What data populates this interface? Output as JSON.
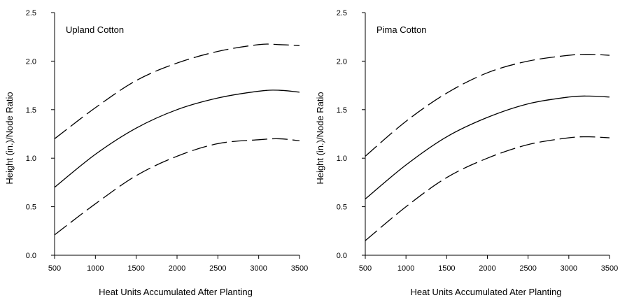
{
  "chart_data": [
    {
      "type": "line",
      "title": "Upland Cotton",
      "xlabel": "Heat Units Accumulated After Planting",
      "ylabel": "Height (in.)/Node Ratio",
      "xlim": [
        500,
        3500
      ],
      "ylim": [
        0.0,
        2.5
      ],
      "xticks": [
        "500",
        "1000",
        "1500",
        "2000",
        "2500",
        "3000",
        "3500"
      ],
      "yticks": [
        "0.0",
        "0.5",
        "1.0",
        "1.5",
        "2.0",
        "2.5"
      ],
      "grid": false,
      "series": [
        {
          "style": "dashed",
          "x": [
            500,
            1000,
            1500,
            2000,
            2500,
            3000,
            3250,
            3500
          ],
          "y": [
            1.2,
            1.52,
            1.8,
            1.98,
            2.1,
            2.17,
            2.17,
            2.16
          ]
        },
        {
          "style": "solid",
          "x": [
            500,
            1000,
            1500,
            2000,
            2500,
            3000,
            3250,
            3500
          ],
          "y": [
            0.7,
            1.04,
            1.31,
            1.5,
            1.62,
            1.69,
            1.7,
            1.68
          ]
        },
        {
          "style": "dashed",
          "x": [
            500,
            1000,
            1500,
            2000,
            2500,
            3000,
            3250,
            3500
          ],
          "y": [
            0.21,
            0.53,
            0.82,
            1.02,
            1.15,
            1.19,
            1.2,
            1.18
          ]
        }
      ]
    },
    {
      "type": "line",
      "title": "Pima Cotton",
      "xlabel": "Heat Units Accumulated Ater Planting",
      "ylabel": "Height (in.)/Node Ratio",
      "xlim": [
        500,
        3500
      ],
      "ylim": [
        0.0,
        2.5
      ],
      "xticks": [
        "500",
        "1000",
        "1500",
        "2000",
        "2500",
        "3000",
        "3500"
      ],
      "yticks": [
        "0.0",
        "0.5",
        "1.0",
        "1.5",
        "2.0",
        "2.5"
      ],
      "grid": false,
      "series": [
        {
          "style": "dashed",
          "x": [
            500,
            1000,
            1500,
            2000,
            2500,
            3000,
            3250,
            3500
          ],
          "y": [
            1.02,
            1.38,
            1.67,
            1.88,
            2.0,
            2.06,
            2.07,
            2.06
          ]
        },
        {
          "style": "solid",
          "x": [
            500,
            1000,
            1500,
            2000,
            2500,
            3000,
            3250,
            3500
          ],
          "y": [
            0.58,
            0.93,
            1.22,
            1.42,
            1.56,
            1.63,
            1.64,
            1.63
          ]
        },
        {
          "style": "dashed",
          "x": [
            500,
            1000,
            1500,
            2000,
            2500,
            3000,
            3250,
            3500
          ],
          "y": [
            0.15,
            0.5,
            0.8,
            1.0,
            1.14,
            1.21,
            1.22,
            1.21
          ]
        }
      ]
    }
  ]
}
